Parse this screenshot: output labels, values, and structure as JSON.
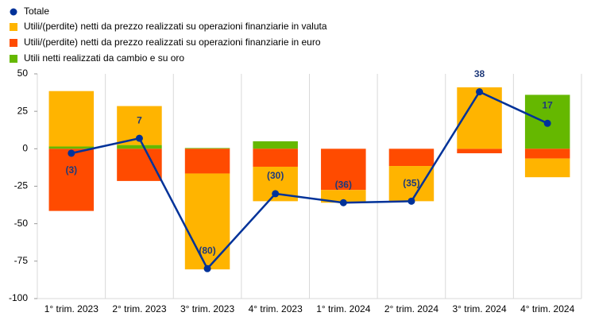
{
  "chart_data": {
    "type": "bar-line",
    "categories": [
      "1° trim. 2023",
      "2° trim. 2023",
      "3° trim. 2023",
      "4° trim. 2023",
      "1° trim. 2024",
      "2° trim. 2024",
      "3° trim. 2024",
      "4° trim. 2024"
    ],
    "series": [
      {
        "name": "Utili/(perdite) netti da prezzo realizzati su operazioni finanziarie in valuta",
        "color": "#ffb400",
        "values": [
          37,
          26,
          -64,
          -23,
          -8.5,
          -23.5,
          41,
          -12.5
        ]
      },
      {
        "name": "Utili/(perdite) netti da prezzo realizzati su operazioni finanziarie in euro",
        "color": "#ff4b00",
        "values": [
          -41.5,
          -21.5,
          -16.5,
          -12,
          -27.5,
          -11.5,
          -3,
          -6.5
        ]
      },
      {
        "name": "Utili netti realizzati da cambio e su oro",
        "color": "#65b800",
        "values": [
          1.5,
          2.5,
          0.5,
          5,
          0,
          0,
          0,
          36
        ]
      }
    ],
    "line": {
      "name": "Totale",
      "color": "#003299",
      "values": [
        -3,
        7,
        -80,
        -30,
        -36,
        -35,
        38,
        17
      ],
      "value_labels": [
        "(3)",
        "7",
        "(80)",
        "(30)",
        "(36)",
        "(35)",
        "38",
        "17"
      ]
    },
    "ylim": [
      -100,
      50
    ],
    "yticks": [
      -100,
      -75,
      -50,
      -25,
      0,
      25,
      50
    ]
  }
}
